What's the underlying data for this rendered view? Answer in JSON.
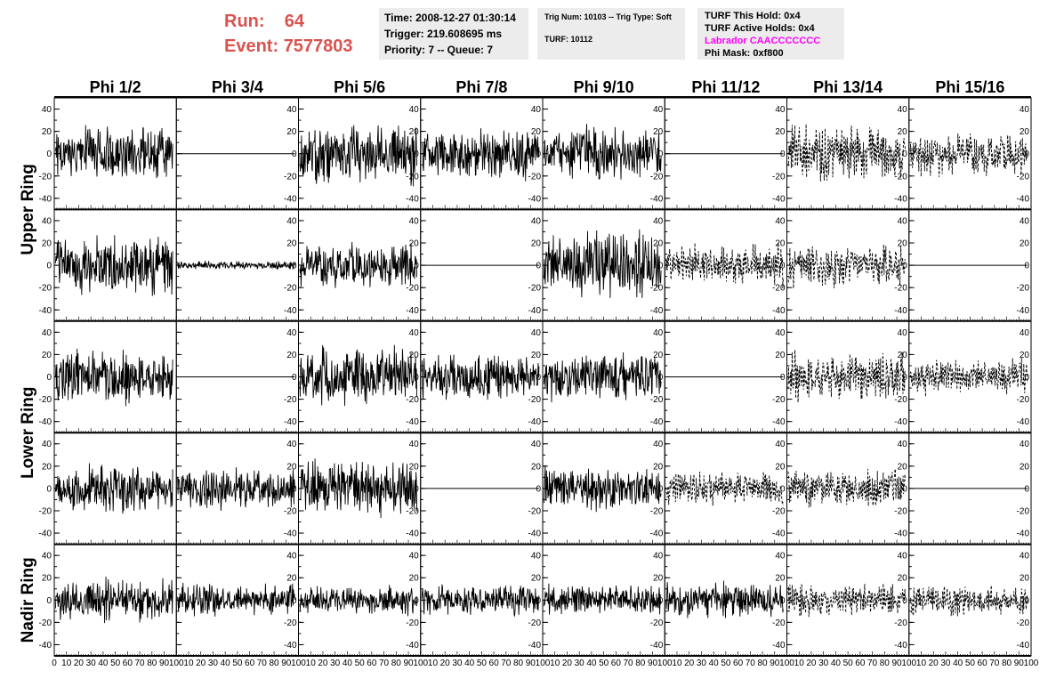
{
  "header": {
    "run_label": "Run:",
    "run_value": "64",
    "event_label": "Event:",
    "event_value": "7577803",
    "color": "#d9534f"
  },
  "info1": {
    "time": "Time: 2008-12-27 01:30:14",
    "trigger": "Trigger: 219.608695 ms",
    "priority": "Priority: 7 -- Queue: 7"
  },
  "info2": {
    "trig": "Trig Num: 10103 -- Trig Type: Soft",
    "turf": "TURF: 10112"
  },
  "info3": {
    "hold": "TURF This Hold: 0x4",
    "active": "TURF Active Holds: 0x4",
    "labrador": "Labrador CAACCCCCCC",
    "labrador_color": "#ff00ff",
    "phimask": "Phi Mask: 0xf800"
  },
  "chart_data": {
    "type": "line",
    "columns": [
      "Phi 1/2",
      "Phi 3/4",
      "Phi 5/6",
      "Phi 7/8",
      "Phi 9/10",
      "Phi 11/12",
      "Phi 13/14",
      "Phi 15/16"
    ],
    "rows": [
      "Upper Ring",
      "Lower Ring",
      "Nadir Ring"
    ],
    "xlim": [
      0,
      100
    ],
    "ylim": [
      -50,
      50
    ],
    "y_ticks": [
      "40",
      "20",
      "0",
      "-20",
      "-40"
    ],
    "x_tick_labels": [
      "0",
      "10",
      "20",
      "30",
      "40",
      "50",
      "60",
      "70",
      "80",
      "90",
      "100"
    ],
    "panels": [
      [
        {
          "style": "solid",
          "amp": 19
        },
        {
          "style": "flat",
          "amp": 0
        },
        {
          "style": "solid",
          "amp": 21
        },
        {
          "style": "solid",
          "amp": 17
        },
        {
          "style": "solid",
          "amp": 18
        },
        {
          "style": "flat",
          "amp": 0
        },
        {
          "style": "dashed",
          "amp": 19
        },
        {
          "style": "dashed",
          "amp": 15
        }
      ],
      [
        {
          "style": "solid",
          "amp": 19
        },
        {
          "style": "solid",
          "amp": 3
        },
        {
          "style": "solid",
          "amp": 15
        },
        {
          "style": "flat",
          "amp": 0
        },
        {
          "style": "solid",
          "amp": 22
        },
        {
          "style": "dashed",
          "amp": 14
        },
        {
          "style": "dashed",
          "amp": 14
        },
        {
          "style": "flat",
          "amp": 0
        }
      ],
      [
        {
          "style": "solid",
          "amp": 18
        },
        {
          "style": "flat",
          "amp": 0
        },
        {
          "style": "solid",
          "amp": 20
        },
        {
          "style": "solid",
          "amp": 15
        },
        {
          "style": "solid",
          "amp": 16
        },
        {
          "style": "flat",
          "amp": 0
        },
        {
          "style": "dashed",
          "amp": 17
        },
        {
          "style": "dashed",
          "amp": 12
        }
      ],
      [
        {
          "style": "solid",
          "amp": 16
        },
        {
          "style": "solid",
          "amp": 14
        },
        {
          "style": "solid",
          "amp": 19
        },
        {
          "style": "flat",
          "amp": 0
        },
        {
          "style": "solid",
          "amp": 15
        },
        {
          "style": "dashed",
          "amp": 11
        },
        {
          "style": "dashed",
          "amp": 14
        },
        {
          "style": "flat",
          "amp": 0
        }
      ],
      [
        {
          "style": "solid",
          "amp": 15
        },
        {
          "style": "solid",
          "amp": 11
        },
        {
          "style": "solid",
          "amp": 10
        },
        {
          "style": "solid",
          "amp": 10
        },
        {
          "style": "solid",
          "amp": 10
        },
        {
          "style": "solid",
          "amp": 12
        },
        {
          "style": "dashed",
          "amp": 11
        },
        {
          "style": "dashed",
          "amp": 11
        }
      ]
    ]
  }
}
